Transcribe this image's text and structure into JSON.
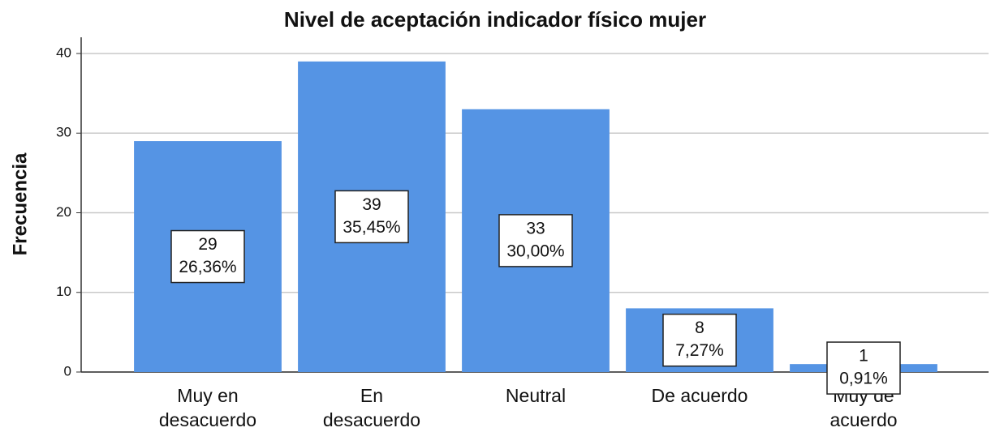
{
  "chart_data": {
    "type": "bar",
    "title": "Nivel de aceptación indicador físico mujer",
    "y_label": "Frecuencia",
    "categories": [
      [
        "Muy en",
        "desacuerdo"
      ],
      [
        "En",
        "desacuerdo"
      ],
      [
        "Neutral"
      ],
      [
        "De acuerdo"
      ],
      [
        "Muy de",
        "acuerdo"
      ]
    ],
    "values": [
      29,
      39,
      33,
      8,
      1
    ],
    "percentage_labels": [
      "26,36%",
      "35,45%",
      "30,00%",
      "7,27%",
      "0,91%"
    ],
    "color": "#5594e4",
    "ylim": [
      0,
      40
    ],
    "yticks": [
      0,
      10,
      20,
      30,
      40
    ],
    "grid": true
  }
}
